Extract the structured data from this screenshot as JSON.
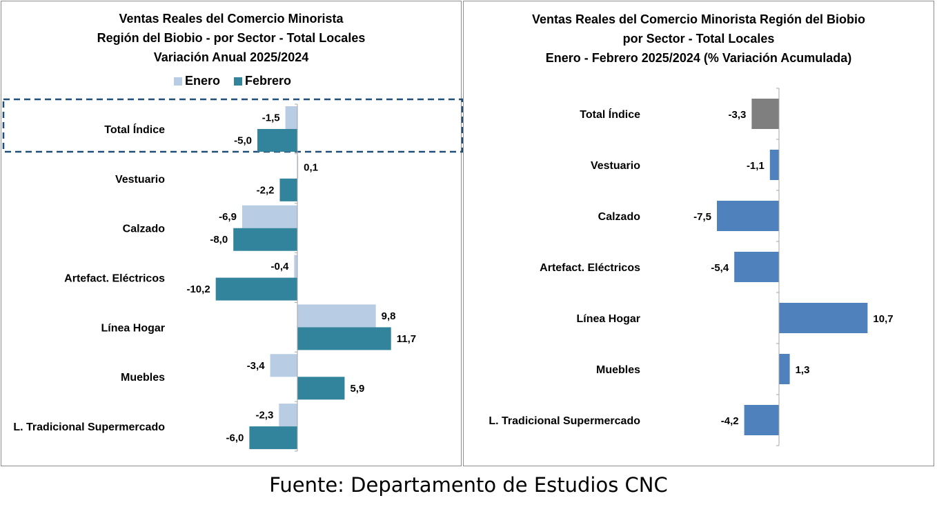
{
  "colors": {
    "enero": "#b8cce4",
    "febrero": "#31849b",
    "acumulada": "#4f81bd",
    "total": "#7f7f7f",
    "highlight": "#1f4e79"
  },
  "source": "Fuente: Departamento de Estudios CNC",
  "chart_data": [
    {
      "type": "bar",
      "orientation": "horizontal",
      "title": [
        "Ventas Reales del Comercio Minorista",
        "Región del Biobio - por Sector - Total Locales",
        "Variación Anual 2025/2024"
      ],
      "legend": {
        "position": "top",
        "entries": [
          "Enero",
          "Febrero"
        ]
      },
      "categories": [
        "Total Índice",
        "Vestuario",
        "Calzado",
        "Artefact. Eléctricos",
        "Línea Hogar",
        "Muebles",
        "L. Tradicional Supermercado"
      ],
      "series": [
        {
          "name": "Enero",
          "values": [
            -1.5,
            0.1,
            -6.9,
            -0.4,
            9.8,
            -3.4,
            -2.3
          ],
          "labels": [
            "-1,5",
            "0,1",
            "-6,9",
            "-0,4",
            "9,8",
            "-3,4",
            "-2,3"
          ]
        },
        {
          "name": "Febrero",
          "values": [
            -5.0,
            -2.2,
            -8.0,
            -10.2,
            11.7,
            5.9,
            -6.0
          ],
          "labels": [
            "-5,0",
            "-2,2",
            "-8,0",
            "-10,2",
            "11,7",
            "5,9",
            "-6,0"
          ]
        }
      ],
      "highlighted_category": "Total Índice"
    },
    {
      "type": "bar",
      "orientation": "horizontal",
      "title": [
        "Ventas Reales del Comercio Minorista Región del Biobio",
        "por Sector - Total Locales",
        "Enero  - Febrero 2025/2024  (% Variación Acumulada)"
      ],
      "categories": [
        "Total Índice",
        "Vestuario",
        "Calzado",
        "Artefact. Eléctricos",
        "Línea Hogar",
        "Muebles",
        "L. Tradicional Supermercado"
      ],
      "series": [
        {
          "values": [
            -3.3,
            -1.1,
            -7.5,
            -5.4,
            10.7,
            1.3,
            -4.2
          ],
          "labels": [
            "-3,3",
            "-1,1",
            "-7,5",
            "-5,4",
            "10,7",
            "1,3",
            "-4,2"
          ]
        }
      ]
    }
  ]
}
